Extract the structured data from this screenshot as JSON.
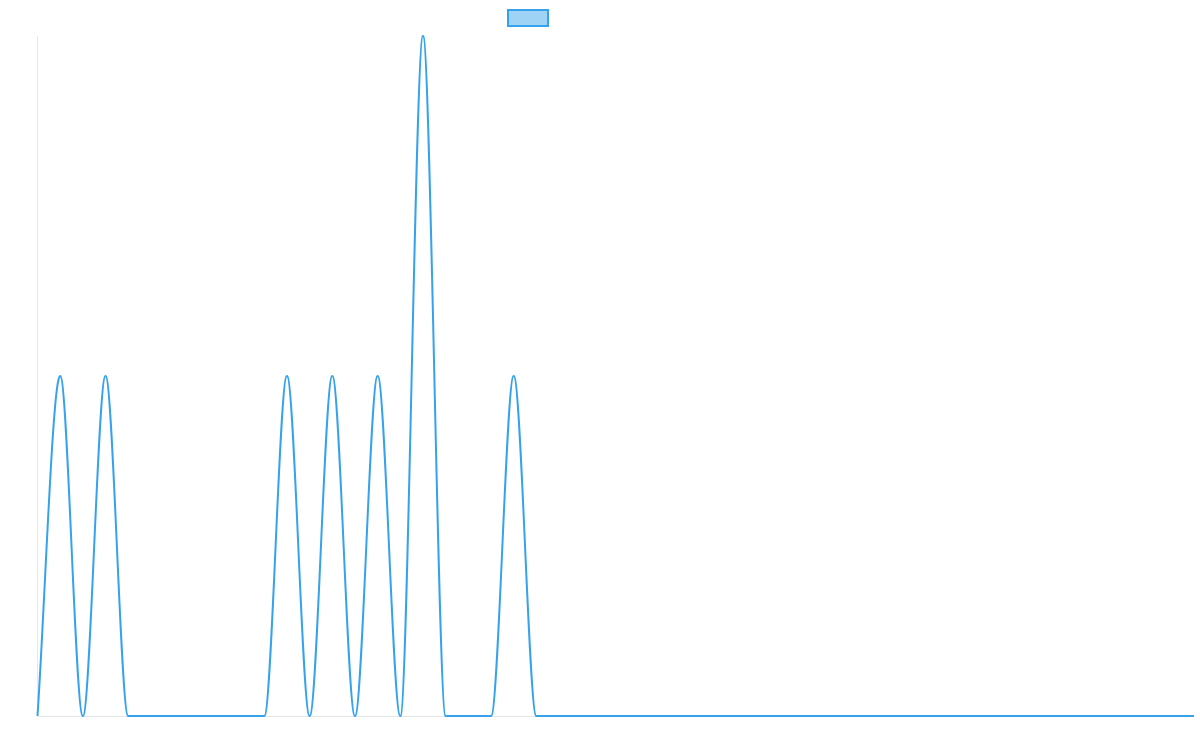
{
  "chart_data": {
    "type": "line",
    "title": "",
    "xlabel": "",
    "ylabel": "",
    "legend": {
      "position": "top",
      "entries": [
        {
          "label": "",
          "fill": "#9fd3f5",
          "stroke": "#36a2eb"
        }
      ]
    },
    "grid": false,
    "x": [
      0,
      1,
      2,
      3,
      4,
      5,
      6,
      7,
      8,
      9,
      10,
      11,
      12,
      13,
      14,
      15,
      16,
      17,
      18,
      19,
      20,
      21,
      22,
      23,
      24,
      25,
      26,
      27,
      28,
      29,
      30,
      31,
      32,
      33,
      34,
      35,
      36,
      37,
      38,
      39,
      40,
      41,
      42,
      43,
      44,
      45,
      46,
      47,
      48,
      49,
      50,
      51
    ],
    "xlim": [
      0,
      51
    ],
    "ylim": [
      0,
      2
    ],
    "series": [
      {
        "name": "",
        "color": "#36a2eb",
        "values": [
          0,
          1,
          0,
          1,
          0,
          0,
          0,
          0,
          0,
          0,
          0,
          1,
          0,
          1,
          0,
          1,
          0,
          2,
          0,
          0,
          0,
          1,
          0,
          0,
          0,
          0,
          0,
          0,
          0,
          0,
          0,
          0,
          0,
          0,
          0,
          0,
          0,
          0,
          0,
          0,
          0,
          0,
          0,
          0,
          0,
          0,
          0,
          0,
          0,
          0,
          0,
          0
        ]
      }
    ]
  }
}
